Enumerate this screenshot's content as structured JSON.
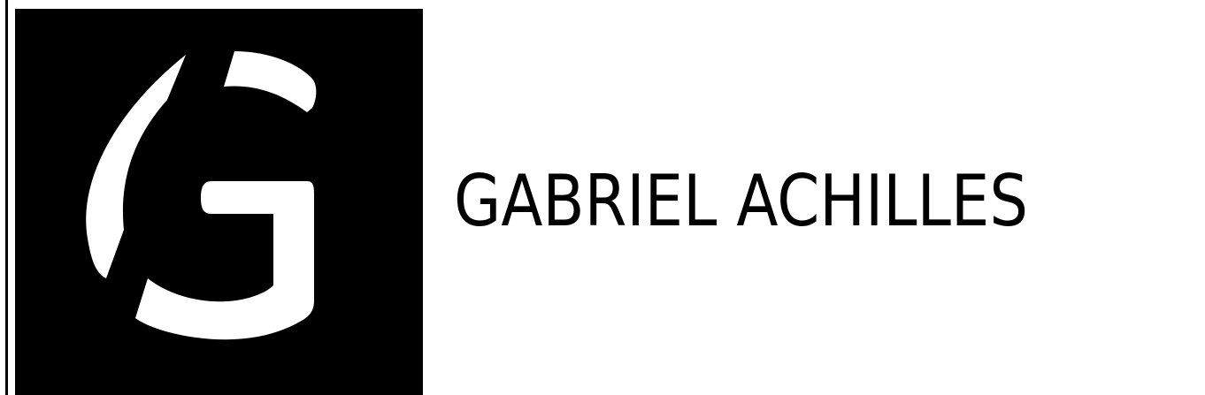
{
  "brand": {
    "name": "GABRIEL ACHILLES",
    "logo_icon": "stylized-g-logo-icon",
    "logo_letter": "G"
  },
  "colors": {
    "background": "#ffffff",
    "logo_box": "#000000",
    "logo_mark": "#ffffff",
    "text": "#000000"
  }
}
